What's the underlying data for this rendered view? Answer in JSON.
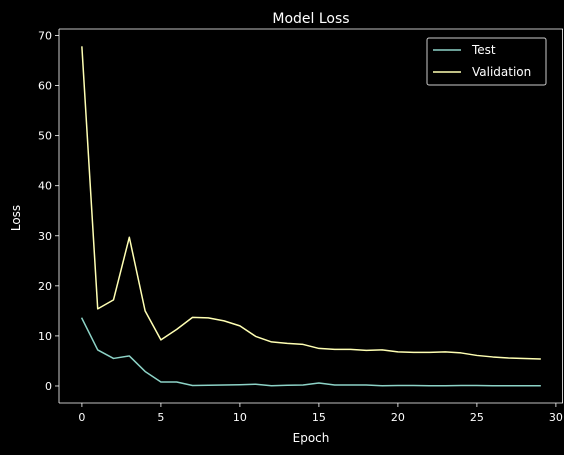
{
  "colors": {
    "background": "#000000",
    "axes": "#ffffff",
    "test_line": "#8dd3c7",
    "validation_line": "#ffffb3"
  },
  "chart_data": {
    "type": "line",
    "title": "Model Loss",
    "xlabel": "Epoch",
    "ylabel": "Loss",
    "xlim": [
      -1.45,
      30.45
    ],
    "ylim": [
      -3.4,
      71.3
    ],
    "xticks": [
      0,
      5,
      10,
      15,
      20,
      25,
      30
    ],
    "yticks": [
      0,
      10,
      20,
      30,
      40,
      50,
      60,
      70
    ],
    "grid": false,
    "legend_position": "top-right",
    "x": [
      0,
      1,
      2,
      3,
      4,
      5,
      6,
      7,
      8,
      9,
      10,
      11,
      12,
      13,
      14,
      15,
      16,
      17,
      18,
      19,
      20,
      21,
      22,
      23,
      24,
      25,
      26,
      27,
      28,
      29
    ],
    "series": [
      {
        "name": "Test",
        "color": "#8dd3c7",
        "values": [
          13.5,
          7.2,
          5.5,
          6.0,
          2.9,
          0.8,
          0.8,
          0.1,
          0.15,
          0.2,
          0.25,
          0.35,
          0.05,
          0.15,
          0.2,
          0.6,
          0.2,
          0.2,
          0.2,
          0.05,
          0.1,
          0.1,
          0.05,
          0.05,
          0.1,
          0.1,
          0.05,
          0.05,
          0.05,
          0.05
        ]
      },
      {
        "name": "Validation",
        "color": "#ffffb3",
        "values": [
          67.7,
          15.4,
          17.2,
          29.7,
          15.0,
          9.2,
          11.3,
          13.7,
          13.6,
          13.0,
          12.0,
          9.9,
          8.8,
          8.5,
          8.3,
          7.5,
          7.3,
          7.3,
          7.1,
          7.2,
          6.8,
          6.7,
          6.7,
          6.8,
          6.6,
          6.1,
          5.8,
          5.6,
          5.5,
          5.4
        ]
      }
    ]
  }
}
